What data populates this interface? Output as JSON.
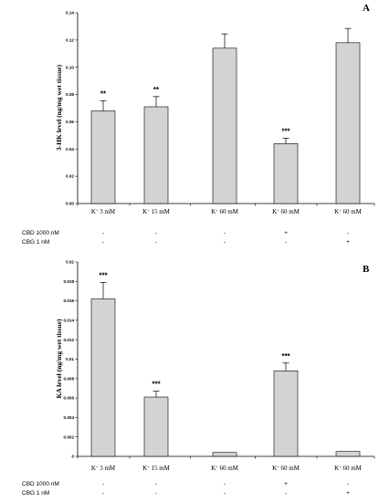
{
  "chart_data": [
    {
      "type": "bar",
      "panel_label": "A",
      "categories": [
        "K+ 3 mM",
        "K+ 15 mM",
        "K+ 60 mM",
        "K+ 60 mM",
        "K+ 60 mM"
      ],
      "category_parts": [
        {
          "base": "K",
          "sup": "+",
          "rest": " 3 mM"
        },
        {
          "base": "K",
          "sup": "+",
          "rest": " 15 mM"
        },
        {
          "base": "K",
          "sup": "+",
          "rest": " 60 mM"
        },
        {
          "base": "K",
          "sup": "+",
          "rest": " 60 mM"
        },
        {
          "base": "K",
          "sup": "+",
          "rest": " 60 mM"
        }
      ],
      "values": [
        0.068,
        0.071,
        0.114,
        0.044,
        0.118
      ],
      "errors": [
        0.0075,
        0.0075,
        0.0105,
        0.004,
        0.0105
      ],
      "significance": [
        "**",
        "**",
        "",
        "***",
        ""
      ],
      "ylabel": "3-HK level (ng/mg wet tissue)",
      "xlabel": "",
      "ylim": [
        0,
        0.14
      ],
      "yticks": [
        "0.00",
        "0.02",
        "0.04",
        "0.06",
        "0.08",
        "0.10",
        "0.12",
        "0.14"
      ],
      "treatments": [
        {
          "label": "CBD 1000 nM",
          "marks": [
            "-",
            "-",
            "-",
            "+",
            "-"
          ]
        },
        {
          "label": "CBG 1 nM",
          "marks": [
            "-",
            "-",
            "-",
            "-",
            "+"
          ]
        }
      ]
    },
    {
      "type": "bar",
      "panel_label": "B",
      "categories": [
        "K+ 3 mM",
        "K+ 15 mM",
        "K+ 60 mM",
        "K+ 60 mM",
        "K+ 60 mM"
      ],
      "category_parts": [
        {
          "base": "K",
          "sup": "+",
          "rest": " 3 mM"
        },
        {
          "base": "K",
          "sup": "+",
          "rest": " 15 mM"
        },
        {
          "base": "K",
          "sup": "+",
          "rest": " 60 mM"
        },
        {
          "base": "K",
          "sup": "+",
          "rest": " 60 mM"
        },
        {
          "base": "K",
          "sup": "+",
          "rest": " 60 mM"
        }
      ],
      "values": [
        0.0162,
        0.0061,
        0.0004,
        0.0088,
        0.0005
      ],
      "errors": [
        0.0017,
        0.0006,
        0.0,
        0.0008,
        0.0
      ],
      "significance": [
        "***",
        "***",
        "",
        "***",
        ""
      ],
      "ylabel": "KA level (ng/mg wet tissue)",
      "xlabel": "",
      "ylim": [
        0,
        0.02
      ],
      "yticks": [
        "0",
        "0.002",
        "0.004",
        "0.006",
        "0.008",
        "0.01",
        "0.012",
        "0.014",
        "0.016",
        "0.018",
        "0.02"
      ],
      "treatments": [
        {
          "label": "CBD 1000 nM",
          "marks": [
            "-",
            "-",
            "-",
            "+",
            "-"
          ]
        },
        {
          "label": "CBG 1 nM",
          "marks": [
            "-",
            "-",
            "-",
            "-",
            "+"
          ]
        }
      ]
    }
  ]
}
